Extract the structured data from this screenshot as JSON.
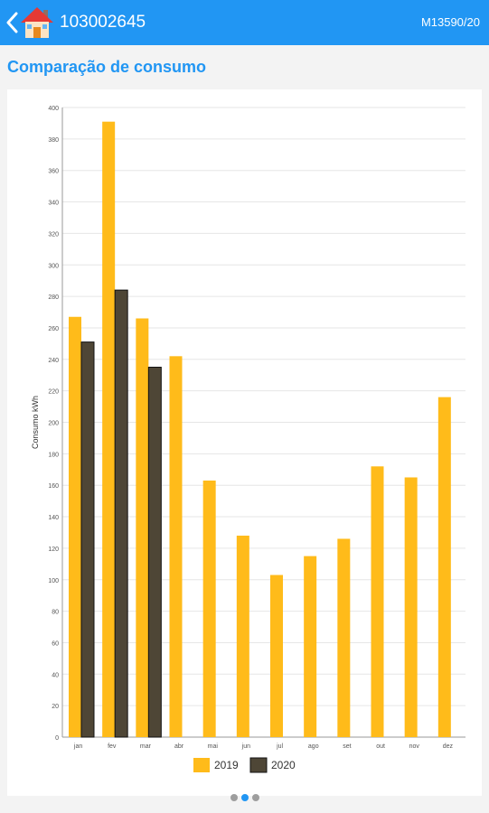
{
  "header": {
    "account_number": "103002645",
    "meter_code": "M13590/20"
  },
  "section": {
    "title": "Comparação de consumo"
  },
  "icons": {
    "back": "chevron-left-icon",
    "home": "home-icon"
  },
  "colors": {
    "primary": "#2196f3",
    "series_2019": "#ffbb1a",
    "series_2020": "#4e4636"
  },
  "pager": {
    "pages": 3,
    "active_index": 1
  },
  "chart_data": {
    "type": "bar",
    "categories": [
      "jan",
      "fev",
      "mar",
      "abr",
      "mai",
      "jun",
      "jul",
      "ago",
      "set",
      "out",
      "nov",
      "dez"
    ],
    "series": [
      {
        "name": "2019",
        "values": [
          267,
          391,
          266,
          242,
          163,
          128,
          103,
          115,
          126,
          172,
          165,
          216
        ]
      },
      {
        "name": "2020",
        "values": [
          251,
          284,
          235,
          null,
          null,
          null,
          null,
          null,
          null,
          null,
          null,
          null
        ]
      }
    ],
    "ylabel": "Consumo kWh",
    "ylim": [
      0,
      400
    ],
    "yticks": [
      0,
      20,
      40,
      60,
      80,
      100,
      120,
      140,
      160,
      180,
      200,
      220,
      240,
      260,
      280,
      300,
      320,
      340,
      360,
      380,
      400
    ],
    "grid": true,
    "legend": "bottom"
  }
}
